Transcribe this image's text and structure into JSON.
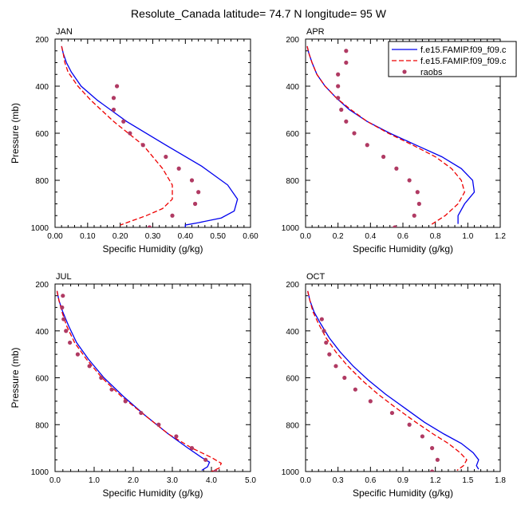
{
  "title": "Resolute_Canada  latitude= 74.7 N longitude= 95 W",
  "colors": {
    "model1": "#0000ee",
    "model2": "#ee0000",
    "raobs": "#b03a63"
  },
  "legend": {
    "items": [
      {
        "label": "f.e15.FAMIP.f09_f09.c",
        "style": "solid",
        "color": "#0000ee"
      },
      {
        "label": "f.e15.FAMIP.f09_f09.c",
        "style": "dashed",
        "color": "#ee0000"
      },
      {
        "label": "raobs",
        "style": "marker",
        "color": "#b03a63"
      }
    ]
  },
  "chart_data": [
    {
      "type": "line",
      "title": "JAN",
      "xlabel": "Specific Humidity (g/kg)",
      "ylabel": "Pressure (mb)",
      "xlim": [
        0,
        0.6
      ],
      "ylim": [
        200,
        1000
      ],
      "xticks": [
        "0.00",
        "0.10",
        "0.20",
        "0.30",
        "0.40",
        "0.50",
        "0.60"
      ],
      "yticks": [
        "200",
        "400",
        "600",
        "800",
        "1000"
      ],
      "series": [
        {
          "name": "f.e15.FAMIP.f09_f09.c",
          "style": "solid",
          "x": [
            0.02,
            0.025,
            0.035,
            0.05,
            0.08,
            0.13,
            0.22,
            0.34,
            0.45,
            0.53,
            0.56,
            0.55,
            0.51,
            0.44,
            0.4,
            0.4
          ],
          "y": [
            230,
            260,
            300,
            340,
            400,
            460,
            550,
            650,
            740,
            820,
            880,
            930,
            960,
            980,
            990,
            1000
          ]
        },
        {
          "name": "f.e15.FAMIP.f09_f09.c",
          "style": "dashed",
          "x": [
            0.02,
            0.025,
            0.03,
            0.04,
            0.07,
            0.11,
            0.18,
            0.27,
            0.33,
            0.36,
            0.36,
            0.33,
            0.28,
            0.23,
            0.2
          ],
          "y": [
            230,
            260,
            300,
            340,
            400,
            460,
            550,
            650,
            750,
            820,
            880,
            920,
            950,
            975,
            990
          ]
        },
        {
          "name": "raobs",
          "style": "marker",
          "x": [
            0.19,
            0.18,
            0.18,
            0.21,
            0.23,
            0.27,
            0.34,
            0.38,
            0.42,
            0.44,
            0.43,
            0.36,
            0.29
          ],
          "y": [
            400,
            450,
            500,
            550,
            600,
            650,
            700,
            750,
            800,
            850,
            900,
            950,
            1000
          ]
        }
      ]
    },
    {
      "type": "line",
      "title": "APR",
      "xlabel": "Specific Humidity (g/kg)",
      "ylabel": "",
      "xlim": [
        0,
        1.2
      ],
      "ylim": [
        200,
        1000
      ],
      "xticks": [
        "0.0",
        "0.2",
        "0.4",
        "0.6",
        "0.8",
        "1.0",
        "1.2"
      ],
      "yticks": [
        "200",
        "400",
        "600",
        "800",
        "1000"
      ],
      "series": [
        {
          "name": "f.e15.FAMIP.f09_f09.c",
          "style": "solid",
          "x": [
            0.01,
            0.02,
            0.04,
            0.07,
            0.12,
            0.19,
            0.27,
            0.38,
            0.52,
            0.68,
            0.84,
            0.96,
            1.03,
            1.04,
            0.98,
            0.94,
            0.94
          ],
          "y": [
            230,
            260,
            300,
            350,
            400,
            450,
            500,
            550,
            600,
            650,
            700,
            750,
            800,
            850,
            900,
            950,
            985
          ]
        },
        {
          "name": "f.e15.FAMIP.f09_f09.c",
          "style": "dashed",
          "x": [
            0.01,
            0.02,
            0.04,
            0.07,
            0.12,
            0.19,
            0.28,
            0.38,
            0.51,
            0.66,
            0.8,
            0.9,
            0.96,
            0.98,
            0.94,
            0.86,
            0.77
          ],
          "y": [
            230,
            260,
            300,
            350,
            400,
            450,
            500,
            550,
            600,
            650,
            700,
            750,
            800,
            850,
            900,
            950,
            990
          ]
        },
        {
          "name": "raobs",
          "style": "marker",
          "x": [
            0.25,
            0.25,
            0.2,
            0.2,
            0.2,
            0.22,
            0.25,
            0.3,
            0.38,
            0.48,
            0.56,
            0.64,
            0.69,
            0.7,
            0.67,
            0.55
          ],
          "y": [
            250,
            300,
            350,
            400,
            450,
            500,
            550,
            600,
            650,
            700,
            750,
            800,
            850,
            900,
            950,
            1000
          ]
        }
      ]
    },
    {
      "type": "line",
      "title": "JUL",
      "xlabel": "Specific Humidity (g/kg)",
      "ylabel": "Pressure (mb)",
      "xlim": [
        0,
        5
      ],
      "ylim": [
        200,
        1000
      ],
      "xticks": [
        "0.0",
        "1.0",
        "2.0",
        "3.0",
        "4.0",
        "5.0"
      ],
      "yticks": [
        "200",
        "400",
        "600",
        "800",
        "1000"
      ],
      "series": [
        {
          "name": "f.e15.FAMIP.f09_f09.c",
          "style": "solid",
          "x": [
            0.05,
            0.1,
            0.2,
            0.35,
            0.55,
            0.85,
            1.25,
            1.75,
            2.3,
            2.9,
            3.4,
            3.75,
            3.95,
            3.9,
            3.75
          ],
          "y": [
            230,
            270,
            320,
            380,
            450,
            520,
            600,
            680,
            760,
            840,
            900,
            940,
            960,
            980,
            995
          ]
        },
        {
          "name": "f.e15.FAMIP.f09_f09.c",
          "style": "dashed",
          "x": [
            0.05,
            0.1,
            0.18,
            0.3,
            0.5,
            0.8,
            1.2,
            1.7,
            2.3,
            2.9,
            3.5,
            4.0,
            4.25,
            4.2,
            4.0
          ],
          "y": [
            230,
            270,
            320,
            380,
            450,
            520,
            600,
            680,
            760,
            840,
            900,
            940,
            965,
            985,
            1000
          ]
        },
        {
          "name": "raobs",
          "style": "marker",
          "x": [
            0.2,
            0.18,
            0.22,
            0.28,
            0.38,
            0.58,
            0.88,
            1.18,
            1.45,
            1.8,
            2.2,
            2.65,
            3.1,
            3.5,
            3.85,
            4.1
          ],
          "y": [
            250,
            300,
            350,
            400,
            450,
            500,
            550,
            600,
            650,
            700,
            750,
            800,
            850,
            900,
            950,
            1000
          ]
        }
      ]
    },
    {
      "type": "line",
      "title": "OCT",
      "xlabel": "Specific Humidity (g/kg)",
      "ylabel": "",
      "xlim": [
        0,
        1.8
      ],
      "ylim": [
        200,
        1000
      ],
      "xticks": [
        "0.0",
        "0.3",
        "0.6",
        "0.9",
        "1.2",
        "1.5",
        "1.8"
      ],
      "yticks": [
        "200",
        "400",
        "600",
        "800",
        "1000"
      ],
      "series": [
        {
          "name": "f.e15.FAMIP.f09_f09.c",
          "style": "solid",
          "x": [
            0.02,
            0.04,
            0.08,
            0.14,
            0.22,
            0.32,
            0.44,
            0.58,
            0.74,
            0.92,
            1.1,
            1.28,
            1.44,
            1.55,
            1.6,
            1.58,
            1.6
          ],
          "y": [
            230,
            270,
            320,
            370,
            430,
            490,
            550,
            610,
            670,
            730,
            790,
            840,
            880,
            920,
            950,
            975,
            990
          ]
        },
        {
          "name": "f.e15.FAMIP.f09_f09.c",
          "style": "dashed",
          "x": [
            0.02,
            0.04,
            0.07,
            0.12,
            0.19,
            0.28,
            0.39,
            0.52,
            0.67,
            0.84,
            1.02,
            1.18,
            1.32,
            1.43,
            1.49,
            1.46,
            1.4
          ],
          "y": [
            230,
            270,
            320,
            370,
            430,
            490,
            550,
            610,
            670,
            730,
            790,
            840,
            880,
            920,
            950,
            975,
            995
          ]
        },
        {
          "name": "raobs",
          "style": "marker",
          "x": [
            0.15,
            0.17,
            0.19,
            0.22,
            0.28,
            0.36,
            0.46,
            0.6,
            0.8,
            0.96,
            1.08,
            1.17,
            1.22,
            1.17
          ],
          "y": [
            350,
            400,
            450,
            500,
            550,
            600,
            650,
            700,
            750,
            800,
            850,
            900,
            950,
            1000
          ]
        }
      ]
    }
  ]
}
